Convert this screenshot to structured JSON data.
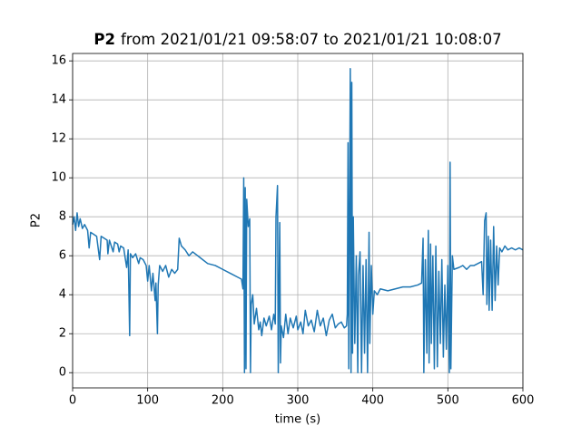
{
  "chart_data": {
    "type": "line",
    "title_bold": "P2",
    "title": "from 2021/01/21 09:58:07 to 2021/01/21 10:08:07",
    "x_label": "time (s)",
    "y_label": "P2",
    "color": "#1f77b4",
    "grid": true,
    "xlim": [
      0,
      600
    ],
    "xticks": [
      0,
      100,
      200,
      300,
      400,
      500,
      600
    ],
    "ylim": [
      -0.78,
      16.38
    ],
    "yticks": [
      0,
      2,
      4,
      6,
      8,
      10,
      12,
      14,
      16
    ],
    "x": [
      0,
      2,
      4,
      6,
      8,
      10,
      13,
      16,
      20,
      22,
      24,
      28,
      32,
      36,
      38,
      42,
      46,
      47,
      49,
      54,
      56,
      60,
      62,
      64,
      68,
      72,
      74,
      76,
      77,
      80,
      84,
      88,
      90,
      94,
      98,
      100,
      102,
      105,
      107,
      110,
      111,
      113,
      114,
      116,
      120,
      124,
      128,
      132,
      136,
      140,
      142,
      145,
      150,
      155,
      160,
      170,
      180,
      190,
      200,
      210,
      220,
      225,
      227,
      228,
      229,
      230,
      231,
      232,
      234,
      236,
      237,
      238,
      240,
      242,
      245,
      248,
      250,
      252,
      255,
      258,
      262,
      265,
      268,
      270,
      271,
      273,
      274,
      276,
      277,
      278,
      281,
      284,
      287,
      290,
      294,
      298,
      300,
      304,
      307,
      310,
      314,
      318,
      322,
      326,
      330,
      334,
      338,
      342,
      346,
      350,
      354,
      358,
      362,
      365,
      366,
      367,
      368,
      369,
      370,
      371,
      372,
      373,
      374,
      376,
      378,
      380,
      381,
      383,
      385,
      387,
      389,
      391,
      393,
      395,
      396,
      398,
      400,
      402,
      406,
      410,
      420,
      430,
      440,
      450,
      460,
      465,
      467,
      468,
      470,
      472,
      474,
      475,
      477,
      478,
      480,
      482,
      484,
      486,
      488,
      490,
      492,
      494,
      496,
      498,
      500,
      502,
      503,
      504,
      506,
      508,
      515,
      520,
      525,
      530,
      535,
      540,
      545,
      547,
      549,
      551,
      552,
      554,
      555,
      557,
      559,
      561,
      563,
      565,
      567,
      569,
      572,
      576,
      580,
      585,
      590,
      595,
      600
    ],
    "values": [
      7.6,
      8.0,
      7.3,
      8.2,
      7.5,
      7.9,
      7.4,
      7.6,
      7.3,
      6.4,
      7.2,
      7.1,
      7.0,
      5.8,
      7.0,
      6.9,
      6.8,
      6.1,
      6.8,
      6.2,
      6.7,
      6.6,
      6.2,
      6.5,
      6.4,
      5.4,
      6.3,
      1.9,
      6.1,
      5.9,
      6.1,
      5.6,
      5.9,
      5.8,
      5.5,
      4.7,
      5.5,
      4.2,
      5.1,
      3.7,
      4.6,
      2.0,
      4.5,
      5.5,
      5.2,
      5.5,
      4.9,
      5.3,
      5.1,
      5.3,
      6.9,
      6.5,
      6.3,
      6.0,
      6.2,
      5.9,
      5.6,
      5.5,
      5.3,
      5.1,
      4.9,
      4.8,
      4.3,
      10.0,
      0.0,
      9.5,
      0.2,
      8.9,
      7.5,
      7.9,
      0.0,
      3.5,
      4.0,
      2.5,
      3.3,
      2.2,
      2.6,
      1.9,
      2.8,
      2.4,
      2.9,
      2.2,
      3.0,
      2.5,
      8.0,
      9.6,
      0.0,
      7.7,
      0.5,
      2.4,
      1.8,
      3.0,
      2.0,
      2.8,
      2.3,
      2.9,
      2.2,
      2.6,
      2.0,
      3.2,
      2.4,
      2.7,
      2.1,
      3.2,
      2.4,
      2.8,
      1.9,
      2.7,
      3.0,
      2.3,
      2.5,
      2.6,
      2.3,
      2.4,
      3.0,
      11.8,
      0.2,
      8.0,
      15.6,
      0.0,
      14.9,
      1.0,
      8.0,
      1.5,
      6.0,
      0.0,
      5.0,
      6.2,
      0.0,
      5.5,
      1.0,
      5.8,
      0.0,
      7.2,
      1.5,
      5.5,
      3.0,
      4.2,
      4.0,
      4.3,
      4.2,
      4.3,
      4.4,
      4.4,
      4.5,
      4.6,
      6.9,
      0.0,
      5.8,
      1.0,
      7.3,
      0.5,
      6.6,
      1.5,
      6.0,
      0.2,
      6.5,
      0.3,
      5.2,
      1.5,
      5.8,
      0.8,
      4.5,
      1.2,
      5.5,
      0.0,
      10.8,
      0.2,
      6.0,
      5.3,
      5.4,
      5.5,
      5.3,
      5.5,
      5.5,
      5.6,
      5.7,
      4.0,
      7.8,
      8.2,
      3.5,
      7.0,
      3.2,
      6.8,
      3.2,
      7.5,
      3.7,
      6.5,
      4.5,
      6.4,
      6.2,
      6.5,
      6.3,
      6.4,
      6.3,
      6.4,
      6.3
    ]
  }
}
